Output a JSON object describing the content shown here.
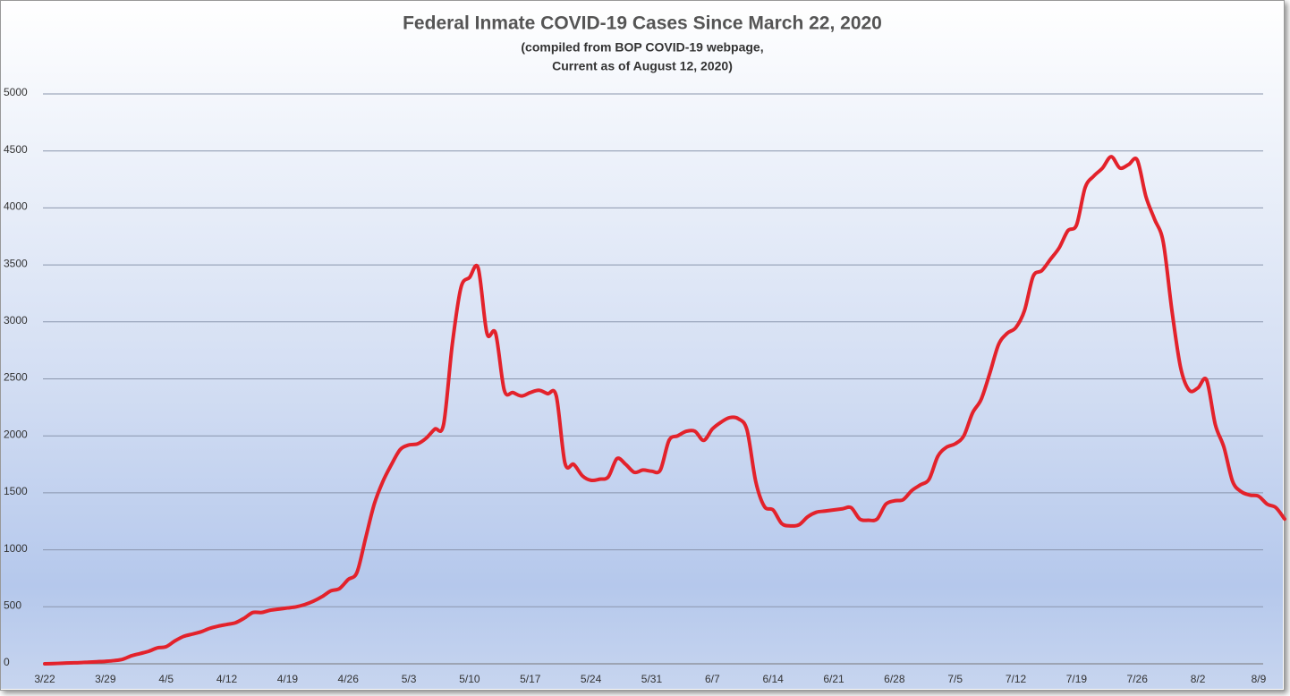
{
  "chart_data": {
    "type": "line",
    "title": "Federal Inmate COVID-19 Cases Since March 22, 2020",
    "subtitle": [
      "(compiled from BOP COVID-19 webpage,",
      "Current as of August 12, 2020)"
    ],
    "categories": [
      "3/22",
      null,
      null,
      null,
      null,
      null,
      null,
      "3/29",
      null,
      null,
      null,
      null,
      null,
      null,
      "4/5",
      null,
      null,
      null,
      null,
      null,
      null,
      "4/12",
      null,
      null,
      null,
      null,
      null,
      null,
      "4/19",
      null,
      null,
      null,
      null,
      null,
      null,
      "4/26",
      null,
      null,
      null,
      null,
      null,
      null,
      "5/3",
      null,
      null,
      null,
      null,
      null,
      null,
      "5/10",
      null,
      null,
      null,
      null,
      null,
      null,
      "5/17",
      null,
      null,
      null,
      null,
      null,
      null,
      "5/24",
      null,
      null,
      null,
      null,
      null,
      null,
      "5/31",
      null,
      null,
      null,
      null,
      null,
      null,
      "6/7",
      null,
      null,
      null,
      null,
      null,
      null,
      "6/14",
      null,
      null,
      null,
      null,
      null,
      null,
      "6/21",
      null,
      null,
      null,
      null,
      null,
      null,
      "6/28",
      null,
      null,
      null,
      null,
      null,
      null,
      "7/5",
      null,
      null,
      null,
      null,
      null,
      null,
      "7/12",
      null,
      null,
      null,
      null,
      null,
      null,
      "7/19",
      null,
      null,
      null,
      null,
      null,
      null,
      "7/26",
      null,
      null,
      null,
      null,
      null,
      null,
      "8/2",
      null,
      null,
      null,
      null,
      null,
      null,
      "8/9",
      null,
      null,
      null
    ],
    "values": [
      0,
      2,
      5,
      8,
      10,
      14,
      18,
      22,
      28,
      40,
      70,
      90,
      110,
      140,
      150,
      200,
      240,
      260,
      280,
      310,
      330,
      345,
      360,
      400,
      450,
      450,
      470,
      480,
      490,
      500,
      520,
      550,
      590,
      640,
      660,
      740,
      800,
      1100,
      1400,
      1600,
      1750,
      1880,
      1920,
      1930,
      1980,
      2060,
      2100,
      2800,
      3300,
      3390,
      3470,
      2900,
      2900,
      2400,
      2380,
      2350,
      2380,
      2400,
      2370,
      2350,
      1760,
      1750,
      1650,
      1610,
      1620,
      1640,
      1800,
      1750,
      1680,
      1700,
      1690,
      1700,
      1960,
      2000,
      2040,
      2040,
      1960,
      2060,
      2120,
      2160,
      2150,
      2050,
      1600,
      1380,
      1350,
      1230,
      1210,
      1220,
      1290,
      1330,
      1340,
      1350,
      1360,
      1370,
      1270,
      1260,
      1270,
      1400,
      1430,
      1440,
      1520,
      1570,
      1620,
      1820,
      1900,
      1930,
      2000,
      2200,
      2320,
      2550,
      2800,
      2900,
      2950,
      3100,
      3400,
      3450,
      3550,
      3650,
      3800,
      3850,
      4180,
      4280,
      4350,
      4450,
      4350,
      4380,
      4420,
      4100,
      3900,
      3700,
      3100,
      2600,
      2400,
      2420,
      2490,
      2100,
      1900,
      1600,
      1510,
      1480,
      1470,
      1400,
      1370,
      1270
    ],
    "color": "#e3222b",
    "ylim": [
      0,
      5000
    ],
    "yticks": [
      0,
      500,
      1000,
      1500,
      2000,
      2500,
      3000,
      3500,
      4000,
      4500,
      5000
    ],
    "grid": true
  }
}
